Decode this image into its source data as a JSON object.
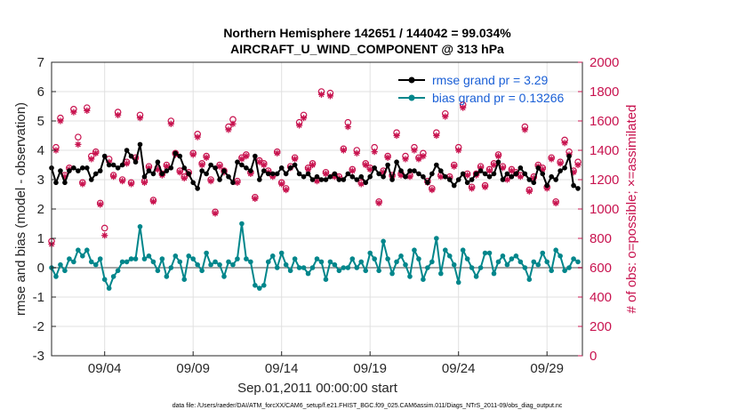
{
  "chart_data": {
    "type": "line",
    "title": "Northern Hemisphere 142651 / 144042 = 99.034%",
    "subtitle": "AIRCRAFT_U_WIND_COMPONENT @ 313 hPa",
    "xlabel": "Sep.01,2011 00:00:00 start",
    "ylabel": "rmse and bias (model - observation)",
    "y2label": "# of obs: o=possible; ×=assimilated",
    "footnote": "data file: /Users/raeder/DAI/ATM_forcXX/CAM6_setup/f.e21.FHIST_BGC.f09_025.CAM6assim.011/Diags_NTrS_2011-09/obs_diag_output.nc",
    "x_ticks": [
      "09/04",
      "09/09",
      "09/14",
      "09/19",
      "09/24",
      "09/29"
    ],
    "x_tick_days": [
      4,
      9,
      14,
      19,
      24,
      29
    ],
    "xlim": [
      1,
      31
    ],
    "ylim": [
      -3,
      7
    ],
    "y_ticks": [
      "-3",
      "-2",
      "-1",
      "0",
      "1",
      "2",
      "3",
      "4",
      "5",
      "6",
      "7"
    ],
    "y2lim": [
      0,
      2000
    ],
    "y2_ticks": [
      "0",
      "200",
      "400",
      "600",
      "800",
      "1000",
      "1200",
      "1400",
      "1600",
      "1800",
      "2000"
    ],
    "grid": true,
    "legend_position": "top-right",
    "colors": {
      "rmse": "#000000",
      "bias": "#00868b",
      "obs": "#c8134f",
      "zero": "#a6a6a6",
      "grid": "#e0e0e0"
    },
    "series": [
      {
        "name": "rmse grand pr = 3.29",
        "x": [
          1.0,
          1.25,
          1.5,
          1.75,
          2.0,
          2.25,
          2.5,
          2.75,
          3.0,
          3.25,
          3.5,
          3.75,
          4.0,
          4.25,
          4.5,
          4.75,
          5.0,
          5.25,
          5.5,
          5.75,
          6.0,
          6.25,
          6.5,
          6.75,
          7.0,
          7.25,
          7.5,
          7.75,
          8.0,
          8.25,
          8.5,
          8.75,
          9.0,
          9.25,
          9.5,
          9.75,
          10.0,
          10.25,
          10.5,
          10.75,
          11.0,
          11.25,
          11.5,
          11.75,
          12.0,
          12.25,
          12.5,
          12.75,
          13.0,
          13.25,
          13.5,
          13.75,
          14.0,
          14.25,
          14.5,
          14.75,
          15.0,
          15.25,
          15.5,
          15.75,
          16.0,
          16.25,
          16.5,
          16.75,
          17.0,
          17.25,
          17.5,
          17.75,
          18.0,
          18.25,
          18.5,
          18.75,
          19.0,
          19.25,
          19.5,
          19.75,
          20.0,
          20.25,
          20.5,
          20.75,
          21.0,
          21.25,
          21.5,
          21.75,
          22.0,
          22.25,
          22.5,
          22.75,
          23.0,
          23.25,
          23.5,
          23.75,
          24.0,
          24.25,
          24.5,
          24.75,
          25.0,
          25.25,
          25.5,
          25.75,
          26.0,
          26.25,
          26.5,
          26.75,
          27.0,
          27.25,
          27.5,
          27.75,
          28.0,
          28.25,
          28.5,
          28.75,
          29.0,
          29.25,
          29.5,
          29.75,
          30.0,
          30.25,
          30.5,
          30.75
        ],
        "values": [
          3.4,
          2.9,
          3.3,
          2.9,
          3.3,
          3.4,
          3.3,
          3.4,
          3.4,
          3.0,
          3.2,
          3.3,
          3.8,
          3.5,
          3.5,
          3.4,
          3.5,
          4.0,
          3.8,
          3.6,
          4.2,
          3.1,
          3.3,
          3.2,
          3.6,
          3.2,
          3.3,
          3.4,
          3.9,
          3.8,
          3.4,
          3.2,
          2.9,
          2.7,
          3.3,
          3.2,
          3.5,
          3.4,
          3.0,
          3.3,
          3.1,
          2.9,
          3.6,
          3.5,
          3.4,
          3.3,
          3.8,
          3.0,
          3.3,
          3.2,
          3.2,
          3.2,
          3.4,
          3.2,
          3.4,
          3.5,
          3.2,
          3.1,
          3.2,
          3.0,
          3.1,
          3.0,
          3.0,
          3.1,
          3.2,
          3.0,
          3.0,
          3.2,
          3.1,
          3.0,
          3.1,
          2.9,
          3.1,
          3.4,
          3.2,
          3.1,
          3.5,
          3.0,
          3.6,
          3.3,
          3.1,
          3.3,
          3.3,
          3.2,
          3.1,
          2.9,
          3.2,
          3.5,
          3.3,
          3.1,
          3.0,
          2.8,
          3.0,
          3.2,
          2.9,
          3.0,
          3.2,
          3.3,
          3.2,
          3.1,
          3.2,
          3.6,
          3.0,
          3.2,
          3.1,
          3.2,
          3.4,
          3.2,
          3.0,
          2.9,
          3.4,
          3.2,
          2.8,
          3.1,
          3.0,
          3.3,
          3.4,
          3.8,
          2.8,
          2.7
        ],
        "color": "#000000"
      },
      {
        "name": "bias grand pr = 0.13266",
        "x": [
          1.0,
          1.25,
          1.5,
          1.75,
          2.0,
          2.25,
          2.5,
          2.75,
          3.0,
          3.25,
          3.5,
          3.75,
          4.0,
          4.25,
          4.5,
          4.75,
          5.0,
          5.25,
          5.5,
          5.75,
          6.0,
          6.25,
          6.5,
          6.75,
          7.0,
          7.25,
          7.5,
          7.75,
          8.0,
          8.25,
          8.5,
          8.75,
          9.0,
          9.25,
          9.5,
          9.75,
          10.0,
          10.25,
          10.5,
          10.75,
          11.0,
          11.25,
          11.5,
          11.75,
          12.0,
          12.25,
          12.5,
          12.75,
          13.0,
          13.25,
          13.5,
          13.75,
          14.0,
          14.25,
          14.5,
          14.75,
          15.0,
          15.25,
          15.5,
          15.75,
          16.0,
          16.25,
          16.5,
          16.75,
          17.0,
          17.25,
          17.5,
          17.75,
          18.0,
          18.25,
          18.5,
          18.75,
          19.0,
          19.25,
          19.5,
          19.75,
          20.0,
          20.25,
          20.5,
          20.75,
          21.0,
          21.25,
          21.5,
          21.75,
          22.0,
          22.25,
          22.5,
          22.75,
          23.0,
          23.25,
          23.5,
          23.75,
          24.0,
          24.25,
          24.5,
          24.75,
          25.0,
          25.25,
          25.5,
          25.75,
          26.0,
          26.25,
          26.5,
          26.75,
          27.0,
          27.25,
          27.5,
          27.75,
          28.0,
          28.25,
          28.5,
          28.75,
          29.0,
          29.25,
          29.5,
          29.75,
          30.0,
          30.25,
          30.5,
          30.75
        ],
        "values": [
          0.0,
          -0.3,
          0.1,
          -0.1,
          0.3,
          0.2,
          0.6,
          0.4,
          0.6,
          0.2,
          0.1,
          0.3,
          -0.4,
          -0.7,
          -0.3,
          -0.1,
          0.2,
          0.2,
          0.3,
          0.3,
          1.4,
          0.3,
          0.4,
          0.2,
          -0.1,
          0.3,
          -0.3,
          0.0,
          0.4,
          0.2,
          -0.4,
          0.4,
          0.3,
          0.1,
          -0.1,
          0.5,
          0.1,
          0.2,
          0.1,
          -0.3,
          0.2,
          0.1,
          0.3,
          1.5,
          0.3,
          0.2,
          -0.6,
          -0.7,
          -0.6,
          0.2,
          0.4,
          0.0,
          0.5,
          0.1,
          -0.1,
          0.3,
          0.0,
          0.0,
          -0.2,
          0.0,
          0.3,
          0.2,
          -0.4,
          0.2,
          0.1,
          -0.1,
          0.0,
          0.0,
          0.3,
          0.0,
          0.2,
          -0.1,
          0.5,
          0.3,
          -0.1,
          0.9,
          0.3,
          -0.2,
          0.2,
          0.4,
          0.1,
          -0.3,
          0.6,
          0.3,
          -0.4,
          0.0,
          0.2,
          1.0,
          -0.2,
          0.6,
          0.4,
          0.1,
          -0.5,
          0.6,
          0.3,
          0.0,
          -0.3,
          0.0,
          0.5,
          0.5,
          -0.2,
          0.2,
          0.4,
          0.1,
          0.3,
          0.4,
          0.2,
          0.0,
          -0.4,
          0.2,
          0.1,
          0.5,
          0.2,
          -0.1,
          0.6,
          0.4,
          -0.1,
          0.0,
          0.3,
          0.2
        ],
        "color": "#00868b"
      },
      {
        "name": "possible",
        "axis": "right",
        "marker": "circle",
        "x": [
          1.0,
          1.25,
          1.5,
          1.75,
          2.0,
          2.25,
          2.5,
          2.75,
          3.0,
          3.25,
          3.5,
          3.75,
          4.0,
          4.25,
          4.5,
          4.75,
          5.0,
          5.25,
          5.5,
          5.75,
          6.0,
          6.25,
          6.5,
          6.75,
          7.0,
          7.25,
          7.5,
          7.75,
          8.0,
          8.25,
          8.5,
          8.75,
          9.0,
          9.25,
          9.5,
          9.75,
          10.0,
          10.25,
          10.5,
          10.75,
          11.0,
          11.25,
          11.5,
          11.75,
          12.0,
          12.25,
          12.5,
          12.75,
          13.0,
          13.25,
          13.5,
          13.75,
          14.0,
          14.25,
          14.5,
          14.75,
          15.0,
          15.25,
          15.5,
          15.75,
          16.0,
          16.25,
          16.5,
          16.75,
          17.0,
          17.25,
          17.5,
          17.75,
          18.0,
          18.25,
          18.5,
          18.75,
          19.0,
          19.25,
          19.5,
          19.75,
          20.0,
          20.25,
          20.5,
          20.75,
          21.0,
          21.25,
          21.5,
          21.75,
          22.0,
          22.25,
          22.5,
          22.75,
          23.0,
          23.25,
          23.5,
          23.75,
          24.0,
          24.25,
          24.5,
          24.75,
          25.0,
          25.25,
          25.5,
          25.75,
          26.0,
          26.25,
          26.5,
          26.75,
          27.0,
          27.25,
          27.5,
          27.75,
          28.0,
          28.25,
          28.5,
          28.75,
          29.0,
          29.25,
          29.5,
          29.75,
          30.0,
          30.25,
          30.5,
          30.75
        ],
        "values": [
          780,
          1420,
          1620,
          1230,
          1280,
          1680,
          1490,
          1180,
          1690,
          1360,
          1390,
          1040,
          870,
          1340,
          1230,
          1660,
          1200,
          1320,
          1180,
          1350,
          1640,
          1190,
          1290,
          1060,
          1280,
          1240,
          1300,
          1600,
          1380,
          1260,
          1220,
          1250,
          1380,
          1510,
          1310,
          1360,
          1200,
          980,
          1300,
          1260,
          1560,
          1610,
          1190,
          1350,
          1370,
          1250,
          1080,
          1330,
          1310,
          1260,
          1230,
          1390,
          1180,
          1140,
          1290,
          1350,
          1590,
          1640,
          1280,
          1310,
          1200,
          1800,
          1250,
          1790,
          1230,
          1220,
          1410,
          1590,
          1270,
          1400,
          1180,
          1310,
          1280,
          1420,
          1050,
          1260,
          1360,
          1230,
          1520,
          1240,
          1360,
          1230,
          1420,
          1350,
          1380,
          1190,
          1140,
          1520,
          1230,
          1650,
          1220,
          1300,
          1420,
          1710,
          1240,
          1150,
          1240,
          1290,
          1160,
          1270,
          1310,
          1370,
          1290,
          1210,
          1270,
          1250,
          1230,
          1560,
          1130,
          1220,
          1300,
          1280,
          1150,
          1350,
          1050,
          1320,
          1470,
          1390,
          1260,
          1320
        ]
      },
      {
        "name": "assimilated",
        "axis": "right",
        "marker": "asterisk",
        "x": [
          1.0,
          1.25,
          1.5,
          1.75,
          2.0,
          2.25,
          2.5,
          2.75,
          3.0,
          3.25,
          3.5,
          3.75,
          4.0,
          4.25,
          4.5,
          4.75,
          5.0,
          5.25,
          5.5,
          5.75,
          6.0,
          6.25,
          6.5,
          6.75,
          7.0,
          7.25,
          7.5,
          7.75,
          8.0,
          8.25,
          8.5,
          8.75,
          9.0,
          9.25,
          9.5,
          9.75,
          10.0,
          10.25,
          10.5,
          10.75,
          11.0,
          11.25,
          11.5,
          11.75,
          12.0,
          12.25,
          12.5,
          12.75,
          13.0,
          13.25,
          13.5,
          13.75,
          14.0,
          14.25,
          14.5,
          14.75,
          15.0,
          15.25,
          15.5,
          15.75,
          16.0,
          16.25,
          16.5,
          16.75,
          17.0,
          17.25,
          17.5,
          17.75,
          18.0,
          18.25,
          18.5,
          18.75,
          19.0,
          19.25,
          19.5,
          19.75,
          20.0,
          20.25,
          20.5,
          20.75,
          21.0,
          21.25,
          21.5,
          21.75,
          22.0,
          22.25,
          22.5,
          22.75,
          23.0,
          23.25,
          23.5,
          23.75,
          24.0,
          24.25,
          24.5,
          24.75,
          25.0,
          25.25,
          25.5,
          25.75,
          26.0,
          26.25,
          26.5,
          26.75,
          27.0,
          27.25,
          27.5,
          27.75,
          28.0,
          28.25,
          28.5,
          28.75,
          29.0,
          29.25,
          29.5,
          29.75,
          30.0,
          30.25,
          30.5,
          30.75
        ],
        "values": [
          760,
          1400,
          1600,
          1220,
          1270,
          1660,
          1440,
          1170,
          1670,
          1340,
          1380,
          1030,
          820,
          1320,
          1220,
          1640,
          1190,
          1310,
          1170,
          1340,
          1620,
          1180,
          1280,
          1050,
          1270,
          1230,
          1290,
          1580,
          1370,
          1250,
          1210,
          1240,
          1370,
          1490,
          1300,
          1350,
          1190,
          970,
          1290,
          1250,
          1540,
          1580,
          1180,
          1340,
          1360,
          1240,
          1070,
          1320,
          1300,
          1250,
          1220,
          1380,
          1170,
          1130,
          1280,
          1340,
          1570,
          1620,
          1270,
          1300,
          1190,
          1780,
          1240,
          1770,
          1220,
          1210,
          1400,
          1560,
          1260,
          1380,
          1170,
          1300,
          1270,
          1390,
          1040,
          1250,
          1350,
          1220,
          1500,
          1230,
          1340,
          1220,
          1400,
          1340,
          1360,
          1180,
          1130,
          1500,
          1220,
          1630,
          1210,
          1290,
          1400,
          1690,
          1230,
          1140,
          1230,
          1280,
          1150,
          1260,
          1300,
          1360,
          1280,
          1200,
          1260,
          1240,
          1220,
          1540,
          1120,
          1210,
          1290,
          1270,
          1140,
          1340,
          1040,
          1310,
          1450,
          1370,
          1250,
          1300
        ]
      }
    ]
  }
}
